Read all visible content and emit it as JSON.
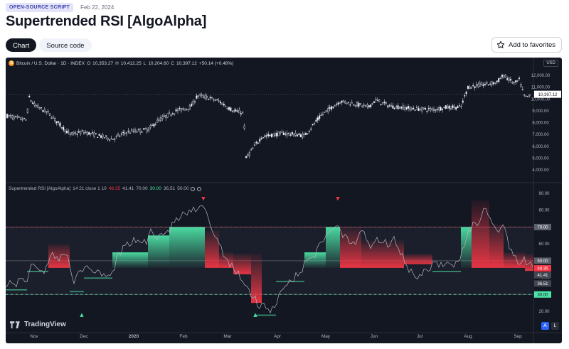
{
  "header": {
    "badge": "OPEN-SOURCE SCRIPT",
    "date": "Feb 22, 2024",
    "title": "Supertrended RSI [AlgoAlpha]"
  },
  "tabs": [
    {
      "label": "Chart",
      "active": true
    },
    {
      "label": "Source code",
      "active": false
    }
  ],
  "favorite": {
    "label": "Add to favorites",
    "icon": "star-icon"
  },
  "chart": {
    "symbol": "Bitcoin / U.S. Dollar · 1D · INDEX",
    "o_label": "O",
    "o": "10,353.27",
    "h_label": "H",
    "h": "10,412.25",
    "l_label": "L",
    "l": "10,204.60",
    "c_label": "C",
    "c": "10,397.12",
    "change": "+50.14 (+0.48%)",
    "currency": "USD",
    "price_axis": [
      "12,000.00",
      "11,000.00",
      "10,000.00",
      "9,000.00",
      "8,000.00",
      "7,000.00",
      "6,000.00",
      "5,000.00",
      "4,000.00"
    ],
    "last_price": "10,397.12",
    "indicator": {
      "name": "Supertrended RSI [AlgoAlpha]",
      "params": "14 21 close 1 10",
      "v1": "48.35",
      "v2": "41.41",
      "v3": "70.00",
      "v4": "30.00",
      "v5": "36.51",
      "v6": "50.00",
      "axis": [
        "90.00",
        "80.00",
        "70.00",
        "60.00",
        "50.00",
        "40.00",
        "30.00",
        "20.00"
      ]
    },
    "time_axis": [
      "Nov",
      "Dec",
      "2020",
      "Feb",
      "Mar",
      "Apr",
      "May",
      "Jun",
      "Jul",
      "Aug",
      "Sep"
    ],
    "brand": "TradingView",
    "buttons": {
      "a": "A",
      "l": "L"
    },
    "colors": {
      "background": "#131722",
      "bull": "#4ce3a6",
      "bear": "#f23645",
      "rsi_line": "#b2b5be"
    }
  }
}
